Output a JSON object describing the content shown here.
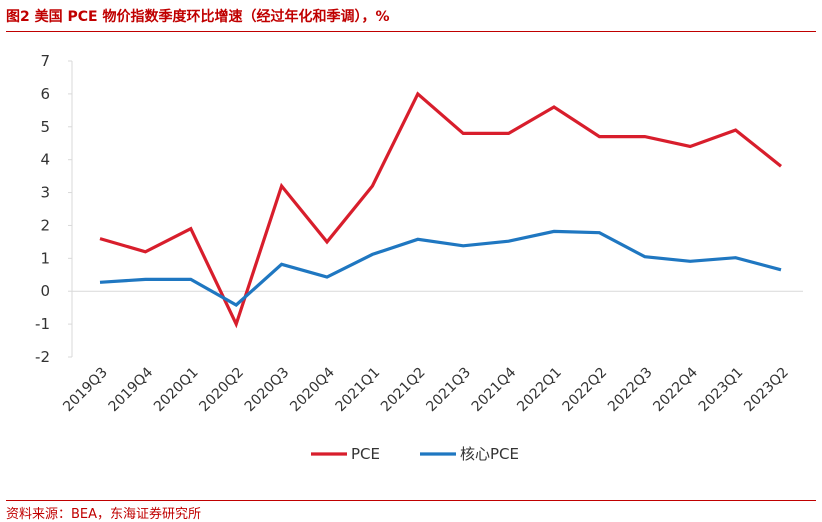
{
  "header": {
    "title": "图2 美国 PCE 物价指数季度环比增速（经过年化和季调），%"
  },
  "footer": {
    "source": "资料来源：BEA，东海证券研究所"
  },
  "chart_data": {
    "type": "line",
    "categories": [
      "2019Q3",
      "2019Q4",
      "2020Q1",
      "2020Q2",
      "2020Q3",
      "2020Q4",
      "2021Q1",
      "2021Q2",
      "2021Q3",
      "2021Q4",
      "2022Q1",
      "2022Q2",
      "2022Q3",
      "2022Q4",
      "2023Q1",
      "2023Q2"
    ],
    "series": [
      {
        "name": "PCE",
        "color": "#d81e2c",
        "values": [
          1.6,
          1.2,
          1.9,
          -1.0,
          3.2,
          1.5,
          3.2,
          6.0,
          4.8,
          4.8,
          5.6,
          4.7,
          4.7,
          4.4,
          4.9,
          3.8
        ]
      },
      {
        "name": "核心PCE",
        "color": "#1f77c1",
        "values": [
          0.27,
          0.36,
          0.36,
          -0.42,
          0.82,
          0.43,
          1.12,
          1.58,
          1.38,
          1.52,
          1.82,
          1.78,
          1.05,
          0.91,
          1.02,
          0.65
        ]
      }
    ],
    "yticks": [
      -2,
      -1,
      0,
      1,
      2,
      3,
      4,
      5,
      6,
      7
    ],
    "ylim": [
      -2,
      7
    ],
    "grid": false,
    "legend_position": "bottom"
  }
}
